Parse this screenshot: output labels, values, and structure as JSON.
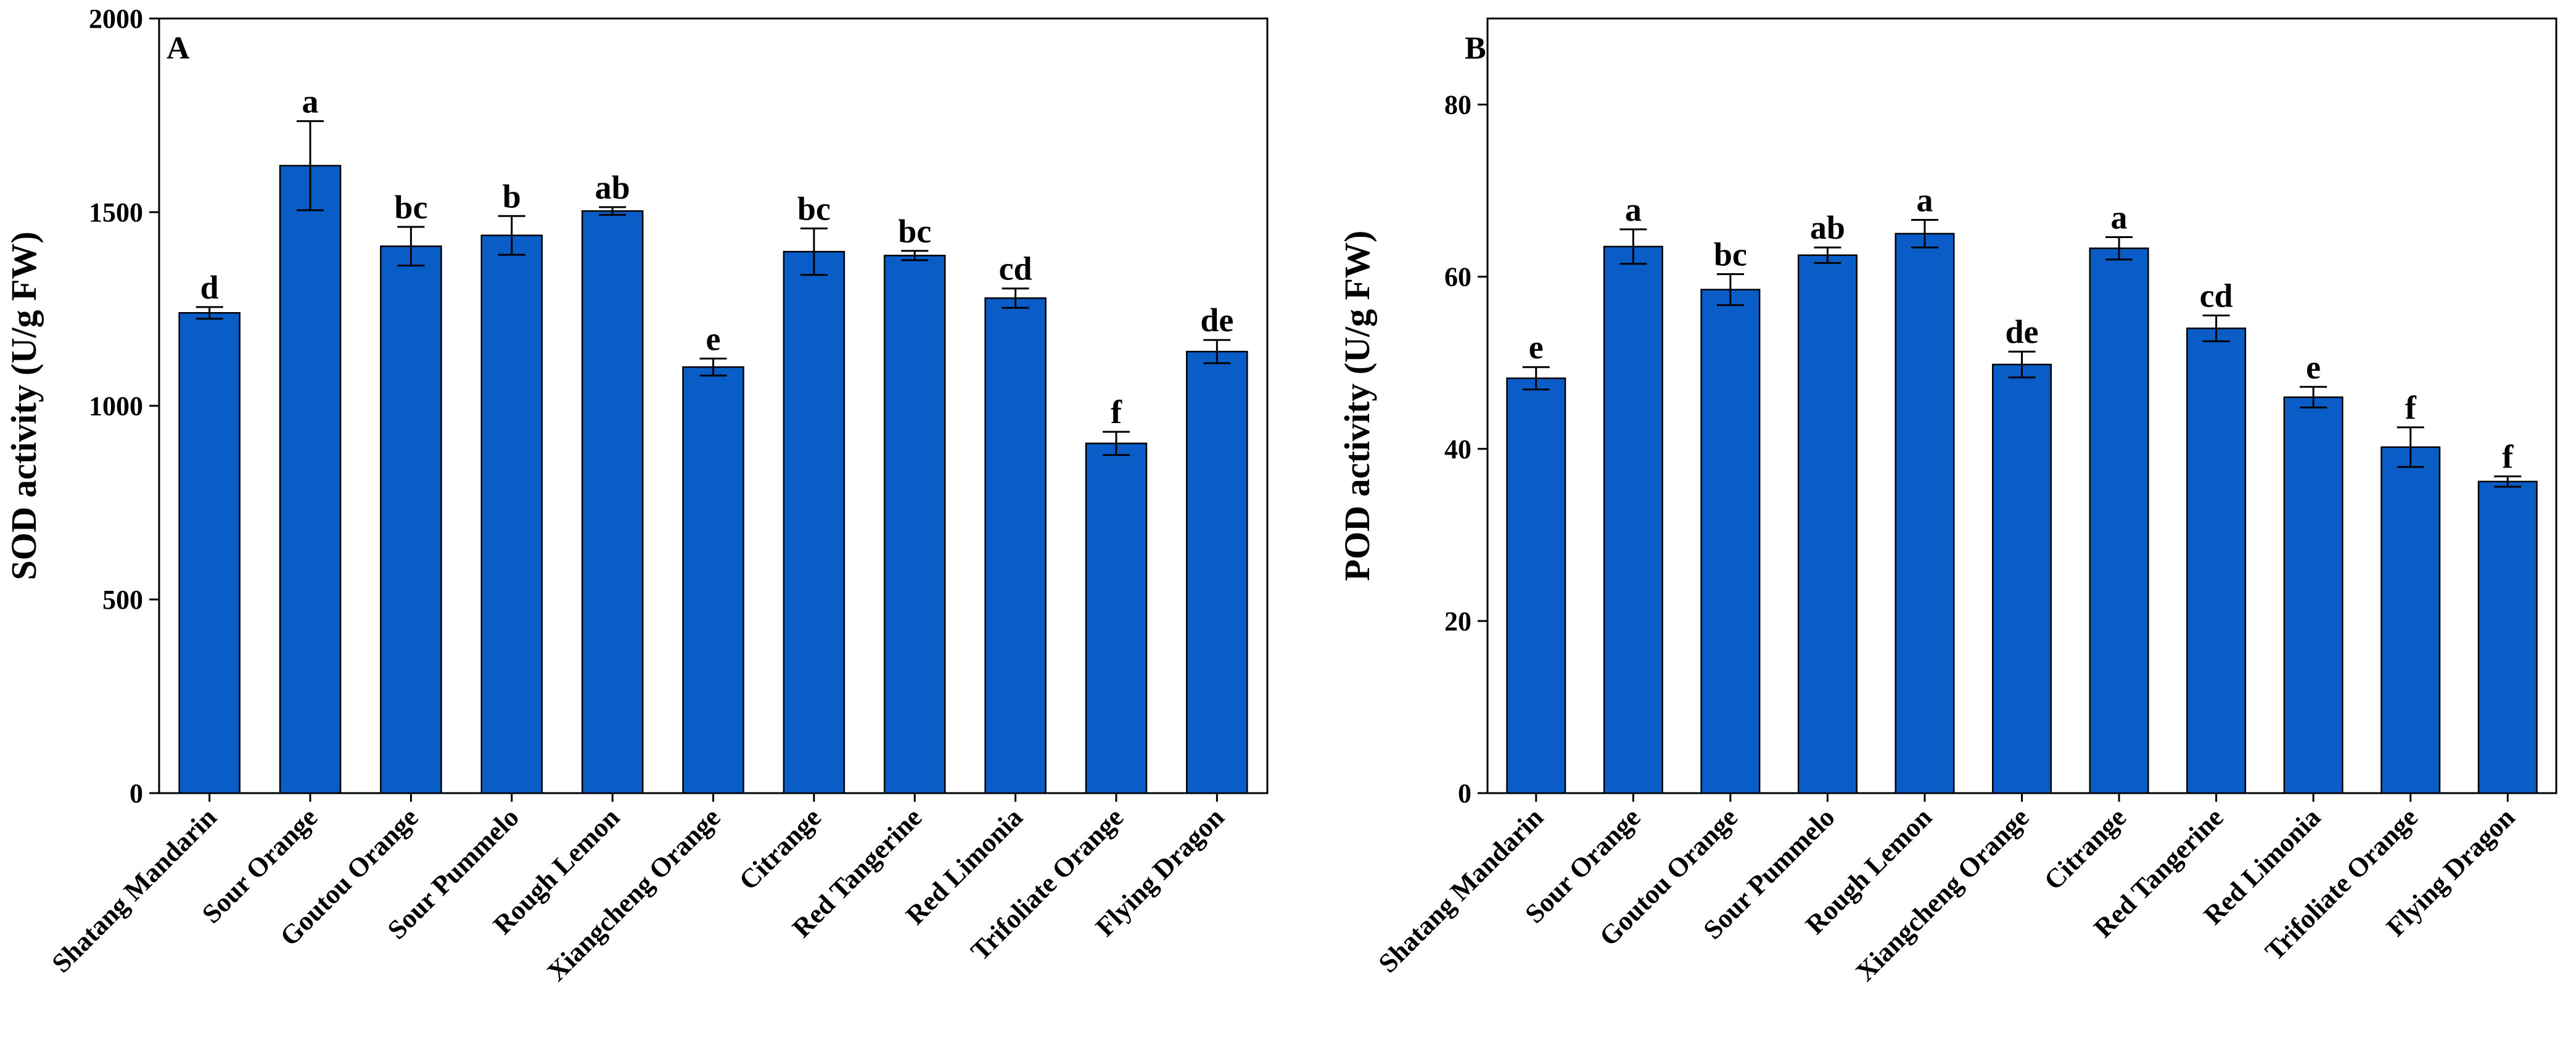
{
  "chart_data": [
    {
      "type": "bar",
      "panel": "A",
      "title": "",
      "xlabel": "",
      "ylabel": "SOD activity (U/g FW)",
      "ylim": [
        0,
        2000
      ],
      "yticks": [
        0,
        500,
        1000,
        1500,
        2000
      ],
      "grid": false,
      "color": "#0a5cc7",
      "categories": [
        "Shatang Mandarin",
        "Sour Orange",
        "Goutou Orange",
        "Sour Pummelo",
        "Rough Lemon",
        "Xiangcheng Orange",
        "Citrange",
        "Red Tangerine",
        "Red Limonia",
        "Trifoliate Orange",
        "Flying Dragon"
      ],
      "values": [
        1240,
        1620,
        1412,
        1440,
        1503,
        1100,
        1398,
        1388,
        1278,
        903,
        1140
      ],
      "errors": [
        15,
        115,
        50,
        50,
        10,
        22,
        60,
        12,
        25,
        30,
        30
      ],
      "significance": [
        "d",
        "a",
        "bc",
        "b",
        "ab",
        "e",
        "bc",
        "bc",
        "cd",
        "f",
        "de"
      ]
    },
    {
      "type": "bar",
      "panel": "B",
      "title": "",
      "xlabel": "",
      "ylabel": "POD activity (U/g FW)",
      "ylim": [
        0,
        90
      ],
      "yticks": [
        0,
        20,
        40,
        60,
        80
      ],
      "grid": false,
      "color": "#0a5cc7",
      "categories": [
        "Shatang Mandarin",
        "Sour Orange",
        "Goutou Orange",
        "Sour Pummelo",
        "Rough Lemon",
        "Xiangcheng Orange",
        "Citrange",
        "Red Tangerine",
        "Red Limonia",
        "Trifoliate Orange",
        "Flying Dragon"
      ],
      "values": [
        48.2,
        63.5,
        58.5,
        62.5,
        65.0,
        49.8,
        63.3,
        54.0,
        46.0,
        40.2,
        36.2
      ],
      "errors": [
        1.3,
        2.0,
        1.8,
        0.9,
        1.6,
        1.5,
        1.3,
        1.5,
        1.2,
        2.3,
        0.6
      ],
      "significance": [
        "e",
        "a",
        "bc",
        "ab",
        "a",
        "de",
        "a",
        "cd",
        "e",
        "f",
        "f"
      ]
    }
  ]
}
